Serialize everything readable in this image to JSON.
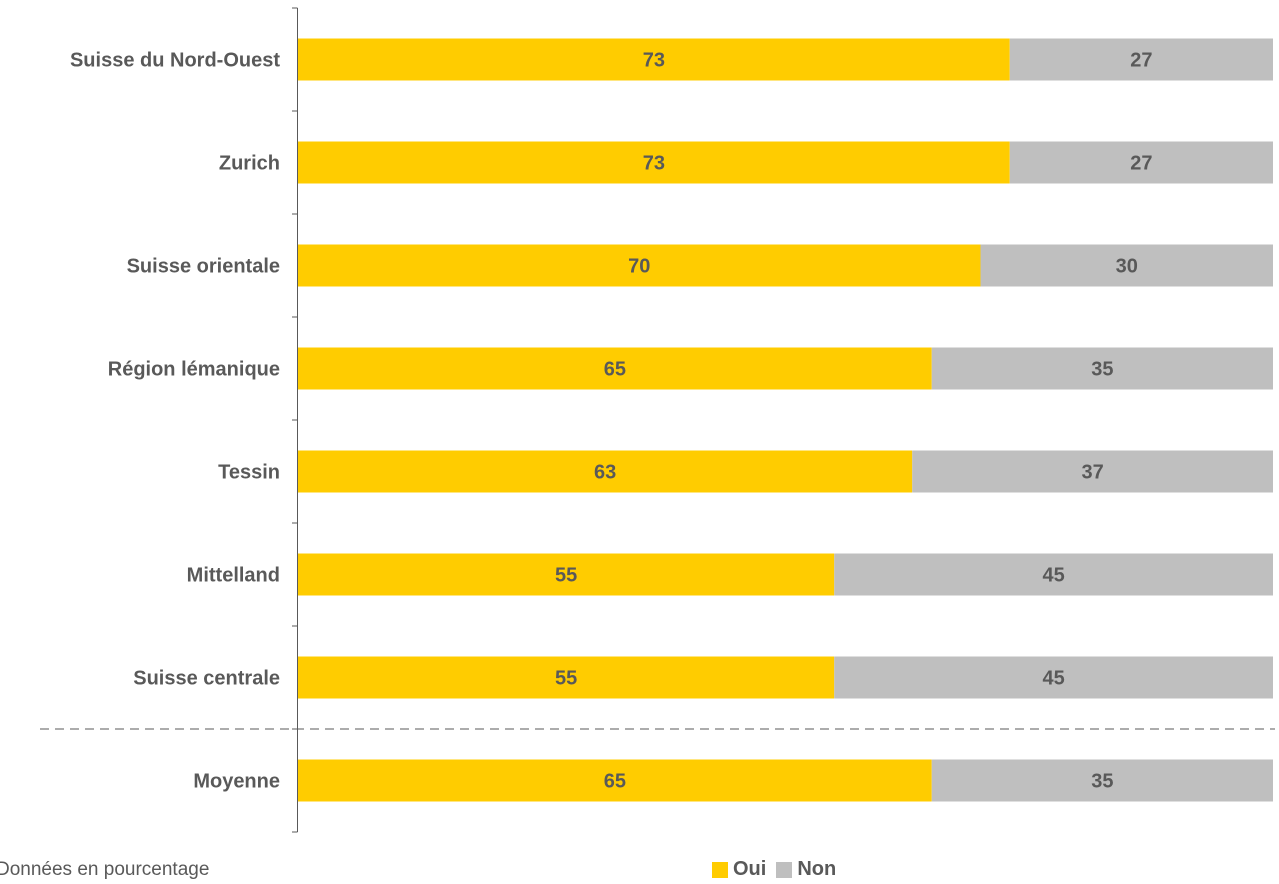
{
  "chart_data": {
    "type": "bar",
    "orientation": "horizontal",
    "stacked": true,
    "categories": [
      "Suisse du Nord-Ouest",
      "Zurich",
      "Suisse orientale",
      "Région lémanique",
      "Tessin",
      "Mittelland",
      "Suisse centrale",
      "Moyenne"
    ],
    "series": [
      {
        "name": "Oui",
        "color": "#FFCC00",
        "values": [
          73,
          73,
          70,
          65,
          63,
          55,
          55,
          65
        ]
      },
      {
        "name": "Non",
        "color": "#BFBFBF",
        "values": [
          27,
          27,
          30,
          35,
          37,
          45,
          45,
          35
        ]
      }
    ],
    "xlim": [
      0,
      100
    ],
    "grid": false,
    "legend_position": "bottom",
    "separator_before": "Moyenne"
  },
  "footnote": "Données en pourcentage",
  "legend": [
    {
      "label": "Oui",
      "color": "#FFCC00"
    },
    {
      "label": "Non",
      "color": "#BFBFBF"
    }
  ]
}
